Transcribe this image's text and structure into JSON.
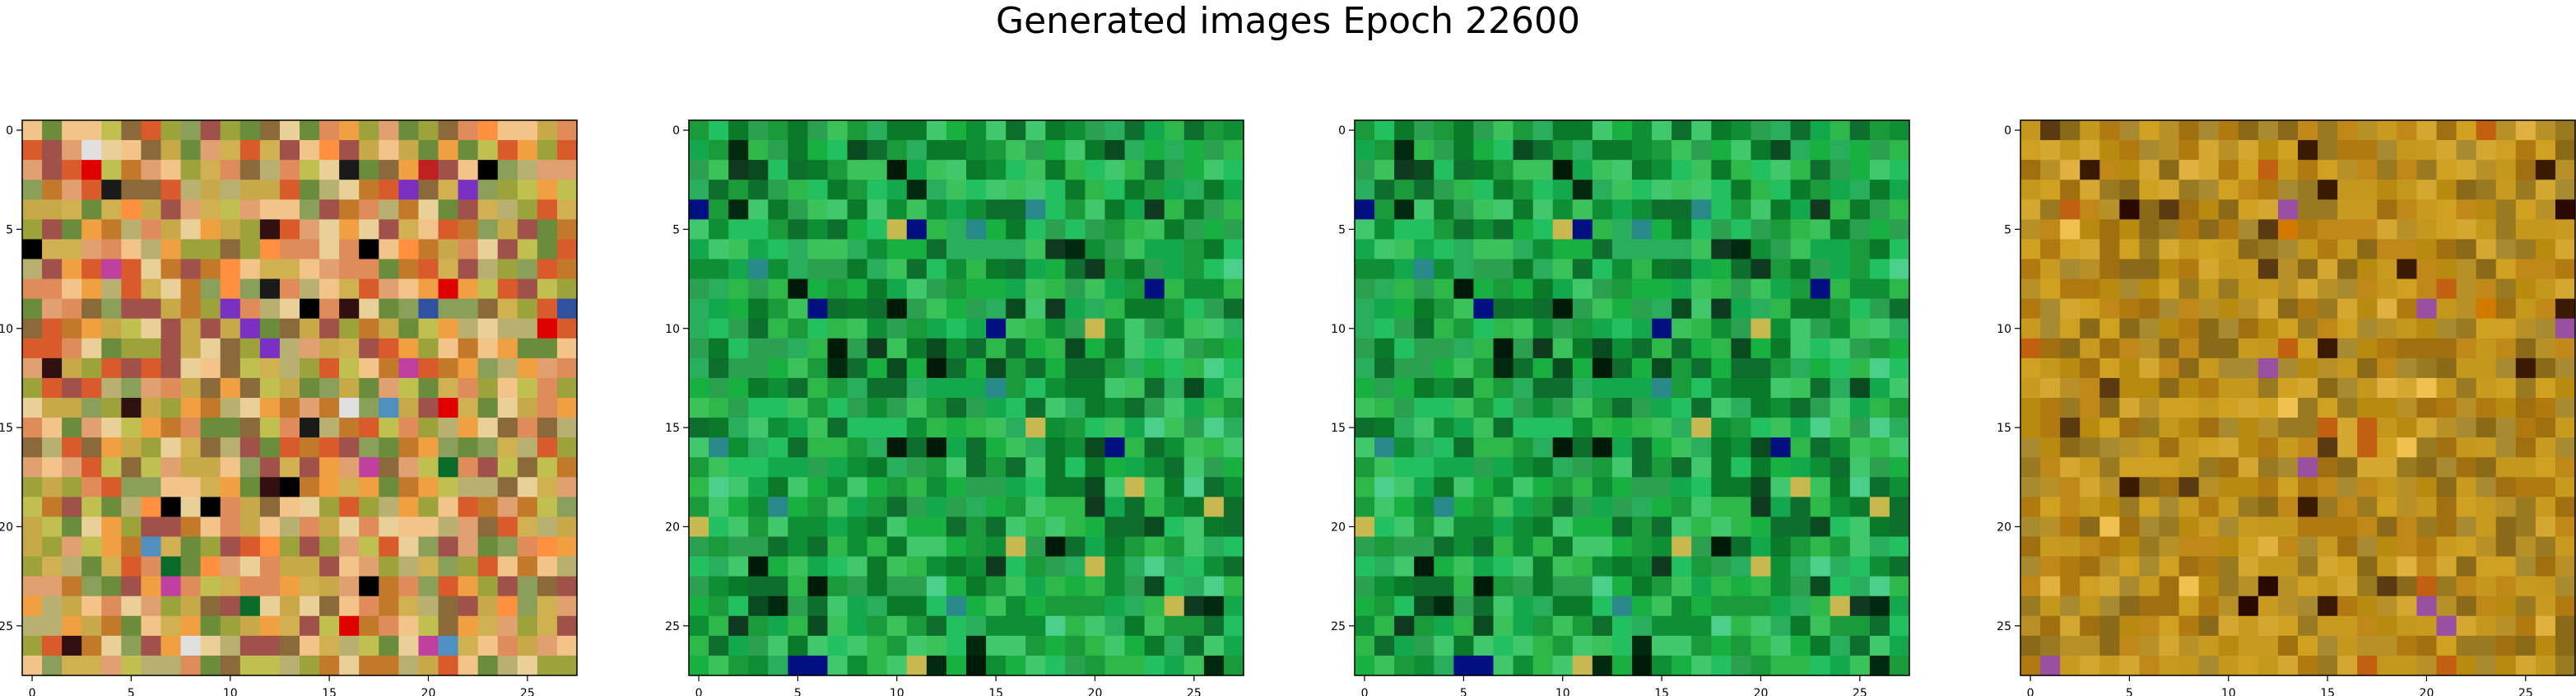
{
  "figure": {
    "title": "Generated images Epoch 22600"
  },
  "chart_data": [
    {
      "type": "heatmap",
      "grid": [
        28,
        28
      ],
      "xlim": [
        -0.5,
        27.5
      ],
      "ylim": [
        27.5,
        -0.5
      ],
      "x_ticks": [
        0,
        5,
        10,
        15,
        20,
        25
      ],
      "y_ticks": [
        0,
        5,
        10,
        15,
        20,
        25
      ],
      "palette": [
        "#e08b5a",
        "#c8a94a",
        "#9ba33a",
        "#c27a2a",
        "#8aa05a",
        "#e0a070",
        "#a0524a",
        "#c0c050",
        "#f2c48a",
        "#6b8c3a",
        "#d95a2a",
        "#b8b070",
        "#e8d098",
        "#8a6a3a",
        "#d0b050",
        "#f0a040"
      ],
      "accents": [
        "#000000",
        "#1a1a1a",
        "#c02020",
        "#e00000",
        "#3050a0",
        "#5090c0",
        "#7a30c0",
        "#c040a0",
        "#e0e0e0",
        "#0a6a2a",
        "#ff9040",
        "#301010"
      ],
      "seed": 11
    },
    {
      "type": "heatmap",
      "grid": [
        28,
        28
      ],
      "xlim": [
        -0.5,
        27.5
      ],
      "ylim": [
        27.5,
        -0.5
      ],
      "x_ticks": [
        0,
        5,
        10,
        15,
        20,
        25
      ],
      "y_ticks": [
        0,
        5,
        10,
        15,
        20,
        25
      ],
      "palette": [
        "#1a9a3a",
        "#2fb84a",
        "#0a7a2a",
        "#22c060",
        "#13a84e",
        "#3cc25a",
        "#0e8f36",
        "#29ae5e",
        "#18b040",
        "#42c86c",
        "#0d6e2e",
        "#2aa050"
      ],
      "accents": [
        "#001a0a",
        "#002a10",
        "#103a20",
        "#001080",
        "#c8b850",
        "#2a8a8a",
        "#0a4a20",
        "#4ad08a"
      ],
      "seed": 23
    },
    {
      "type": "heatmap",
      "grid": [
        28,
        28
      ],
      "xlim": [
        -0.5,
        27.5
      ],
      "ylim": [
        27.5,
        -0.5
      ],
      "x_ticks": [
        0,
        5,
        10,
        15,
        20,
        25
      ],
      "y_ticks": [
        0,
        5,
        10,
        15,
        20,
        25
      ],
      "palette": [
        "#1a9a3a",
        "#2fb84a",
        "#0a7a2a",
        "#22c060",
        "#13a84e",
        "#3cc25a",
        "#0e8f36",
        "#29ae5e",
        "#18b040",
        "#42c86c",
        "#0d6e2e",
        "#2aa050"
      ],
      "accents": [
        "#001a0a",
        "#002a10",
        "#103a20",
        "#001080",
        "#c8b850",
        "#2a8a8a",
        "#0a4a20",
        "#4ad08a"
      ],
      "seed": 23
    },
    {
      "type": "heatmap",
      "grid": [
        28,
        28
      ],
      "xlim": [
        -0.5,
        27.5
      ],
      "ylim": [
        27.5,
        -0.5
      ],
      "x_ticks": [
        0,
        5,
        10,
        15,
        20,
        25
      ],
      "y_ticks": [
        0,
        5,
        10,
        15,
        20,
        25
      ],
      "palette": [
        "#b88a10",
        "#c89a20",
        "#a07010",
        "#d4a830",
        "#9a7a20",
        "#b07a10",
        "#c08818",
        "#8a6a18",
        "#d0a020",
        "#a88a30",
        "#b89028",
        "#c4981c"
      ],
      "accents": [
        "#3a1a00",
        "#2a0a00",
        "#e0b040",
        "#9a50a0",
        "#c06010",
        "#5a3a10",
        "#d07a00",
        "#f0c050"
      ],
      "seed": 37
    }
  ]
}
